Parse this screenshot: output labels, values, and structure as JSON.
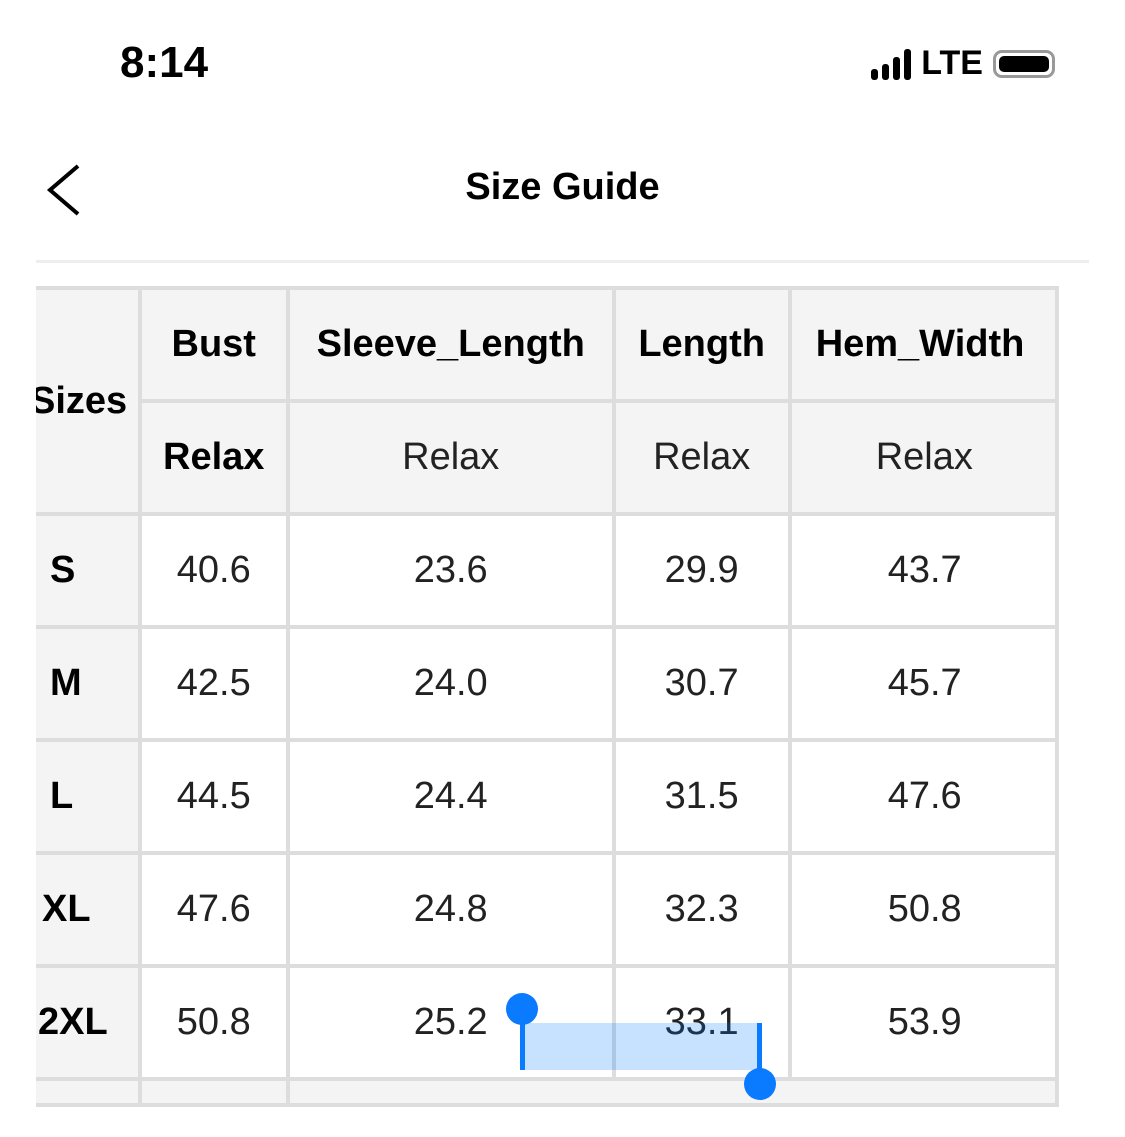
{
  "status_bar": {
    "time": "8:14",
    "network": "LTE",
    "signal_bars": 4,
    "battery_level": 1.0
  },
  "nav": {
    "title": "Size Guide",
    "back_icon": "chevron-left-icon"
  },
  "table": {
    "size_header": "Sizes",
    "columns": [
      {
        "name": "Bust",
        "fit": "Relax"
      },
      {
        "name": "Sleeve_Length",
        "fit": "Relax"
      },
      {
        "name": "Length",
        "fit": "Relax"
      },
      {
        "name": "Hem_Width",
        "fit": "Relax"
      }
    ],
    "rows": [
      {
        "size": "S",
        "values": [
          "40.6",
          "23.6",
          "29.9",
          "43.7"
        ]
      },
      {
        "size": "M",
        "values": [
          "42.5",
          "24.0",
          "30.7",
          "45.7"
        ]
      },
      {
        "size": "L",
        "values": [
          "44.5",
          "24.4",
          "31.5",
          "47.6"
        ]
      },
      {
        "size": "XL",
        "values": [
          "47.6",
          "24.8",
          "32.3",
          "50.8"
        ]
      },
      {
        "size": "2XL",
        "values": [
          "50.8",
          "25.2",
          "33.1",
          "53.9"
        ]
      }
    ]
  },
  "selection_color": "#0a7aff"
}
